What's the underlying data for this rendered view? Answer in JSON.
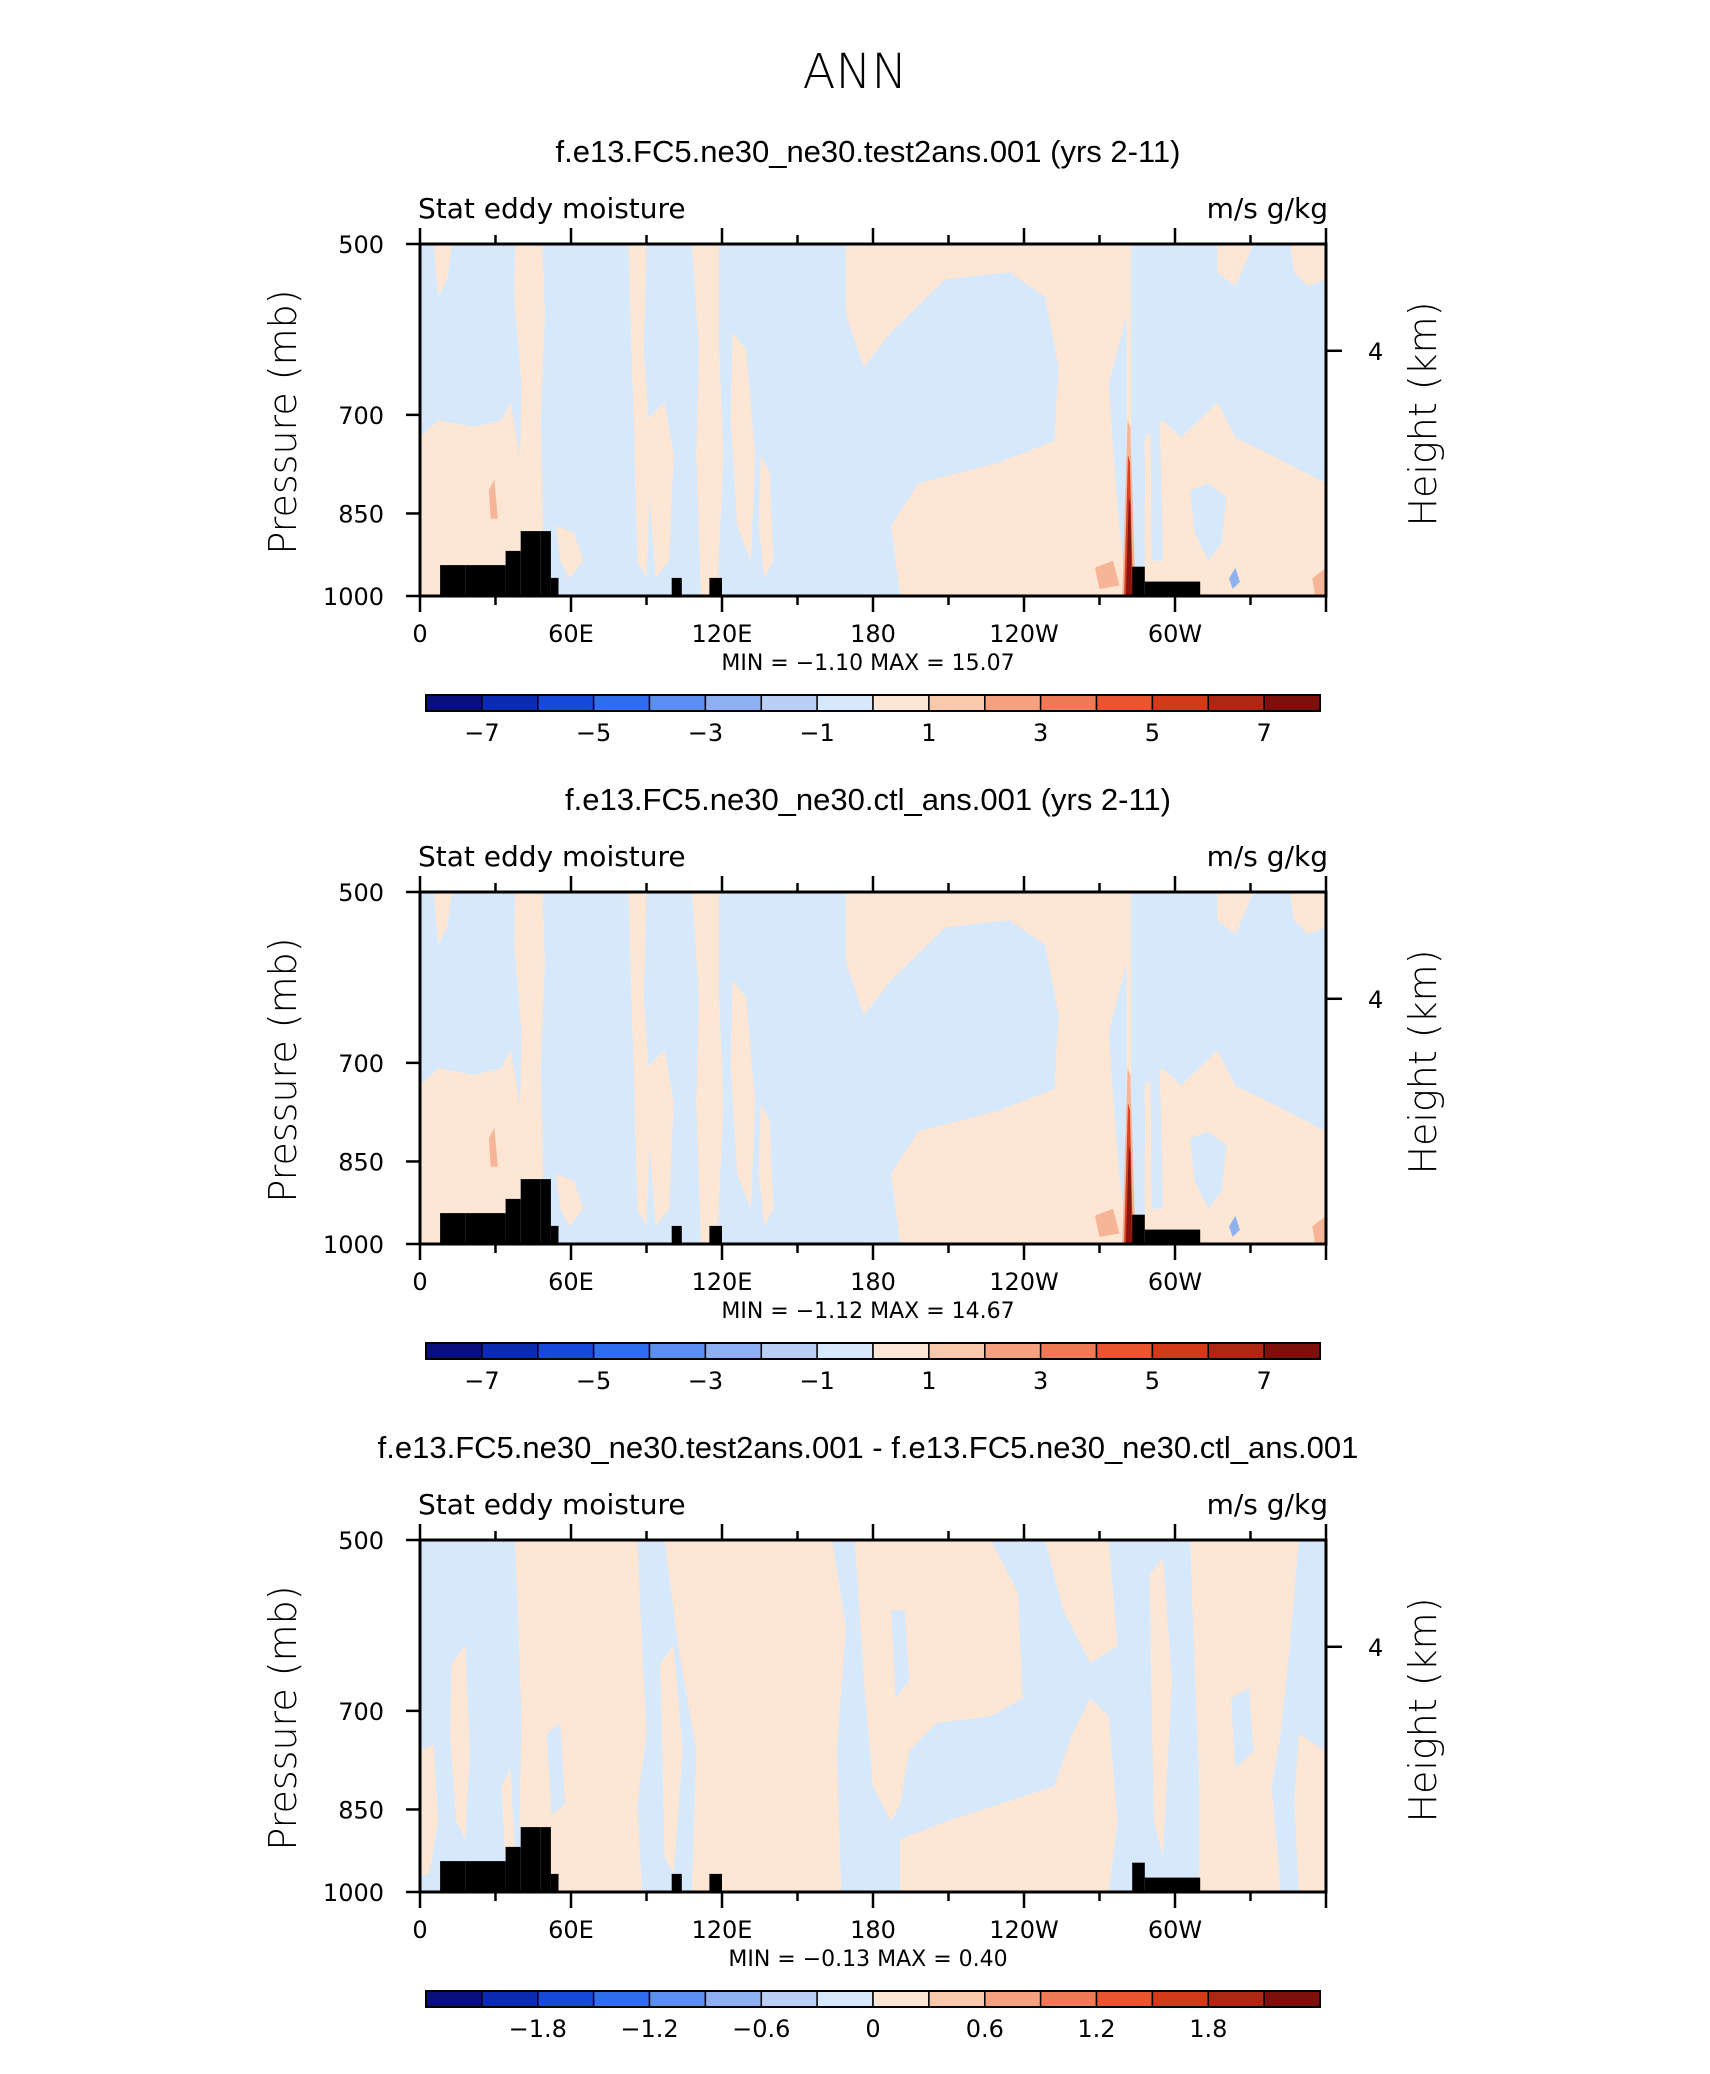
{
  "figure_title": "ANN",
  "colors": {
    "light_blue": "#d6e8fb",
    "light_orange": "#fde6d4",
    "blue_spot": "#8fb2ef",
    "orange_mid": "#f6b597",
    "red_dark": "#8a1410",
    "topography": "#000000",
    "palette": [
      "#08107e",
      "#0b2cb0",
      "#1649dc",
      "#2f6ef0",
      "#5b8ff2",
      "#8eb0f3",
      "#b9cff6",
      "#d6e8fb",
      "#fde6d4",
      "#f9c9ad",
      "#f5a07e",
      "#f07a55",
      "#e8552e",
      "#d23a1a",
      "#ae2712",
      "#7d100b"
    ]
  },
  "chart_data": [
    {
      "type": "heatmap",
      "title": "f.e13.FC5.ne30_ne30.test2ans.001 (yrs 2-11)",
      "left_label": "Stat eddy moisture",
      "right_label": "m/s g/kg",
      "ylabel": "Pressure (mb)",
      "ylabel_right": "Height (km)",
      "yticks": [
        "500",
        "700",
        "850",
        "1000"
      ],
      "ytick_values": [
        500,
        700,
        850,
        1000
      ],
      "ylim": [
        1000,
        500
      ],
      "right_ticks": [
        "4"
      ],
      "right_tick_values": [
        4
      ],
      "xticks": [
        "0",
        "60E",
        "120E",
        "180",
        "120W",
        "60W"
      ],
      "xtick_values": [
        0,
        60,
        120,
        180,
        240,
        300
      ],
      "xlim": [
        0,
        360
      ],
      "stats": "MIN =   −1.10  MAX =   15.07",
      "min": -1.1,
      "max": 15.07,
      "colorbar_labels": [
        "−7",
        "−5",
        "−3",
        "−1",
        "1",
        "3",
        "5",
        "7"
      ],
      "colorbar_levels": [
        -7,
        -6,
        -5,
        -4,
        -3,
        -2,
        -1,
        0,
        1,
        2,
        3,
        4,
        5,
        6,
        7
      ],
      "pattern": "full"
    },
    {
      "type": "heatmap",
      "title": "f.e13.FC5.ne30_ne30.ctl_ans.001 (yrs 2-11)",
      "left_label": "Stat eddy moisture",
      "right_label": "m/s g/kg",
      "ylabel": "Pressure (mb)",
      "ylabel_right": "Height (km)",
      "yticks": [
        "500",
        "700",
        "850",
        "1000"
      ],
      "ytick_values": [
        500,
        700,
        850,
        1000
      ],
      "ylim": [
        1000,
        500
      ],
      "right_ticks": [
        "4"
      ],
      "right_tick_values": [
        4
      ],
      "xticks": [
        "0",
        "60E",
        "120E",
        "180",
        "120W",
        "60W"
      ],
      "xtick_values": [
        0,
        60,
        120,
        180,
        240,
        300
      ],
      "xlim": [
        0,
        360
      ],
      "stats": "MIN =   −1.12  MAX =   14.67",
      "min": -1.12,
      "max": 14.67,
      "colorbar_labels": [
        "−7",
        "−5",
        "−3",
        "−1",
        "1",
        "3",
        "5",
        "7"
      ],
      "colorbar_levels": [
        -7,
        -6,
        -5,
        -4,
        -3,
        -2,
        -1,
        0,
        1,
        2,
        3,
        4,
        5,
        6,
        7
      ],
      "pattern": "full"
    },
    {
      "type": "heatmap",
      "title": "f.e13.FC5.ne30_ne30.test2ans.001 - f.e13.FC5.ne30_ne30.ctl_ans.001",
      "left_label": "Stat eddy moisture",
      "right_label": "m/s g/kg",
      "ylabel": "Pressure (mb)",
      "ylabel_right": "Height (km)",
      "yticks": [
        "500",
        "700",
        "850",
        "1000"
      ],
      "ytick_values": [
        500,
        700,
        850,
        1000
      ],
      "ylim": [
        1000,
        500
      ],
      "right_ticks": [
        "4"
      ],
      "right_tick_values": [
        4
      ],
      "xticks": [
        "0",
        "60E",
        "120E",
        "180",
        "120W",
        "60W"
      ],
      "xtick_values": [
        0,
        60,
        120,
        180,
        240,
        300
      ],
      "xlim": [
        0,
        360
      ],
      "stats": "MIN =   −0.13  MAX =    0.40",
      "min": -0.13,
      "max": 0.4,
      "colorbar_labels": [
        "−1.8",
        "−1.2",
        "−0.6",
        "0",
        "0.6",
        "1.2",
        "1.8"
      ],
      "colorbar_levels": [
        -2.1,
        -1.8,
        -1.5,
        -1.2,
        -0.9,
        -0.6,
        -0.3,
        0,
        0.3,
        0.6,
        0.9,
        1.2,
        1.5,
        1.8,
        2.1
      ],
      "pattern": "diff"
    }
  ]
}
